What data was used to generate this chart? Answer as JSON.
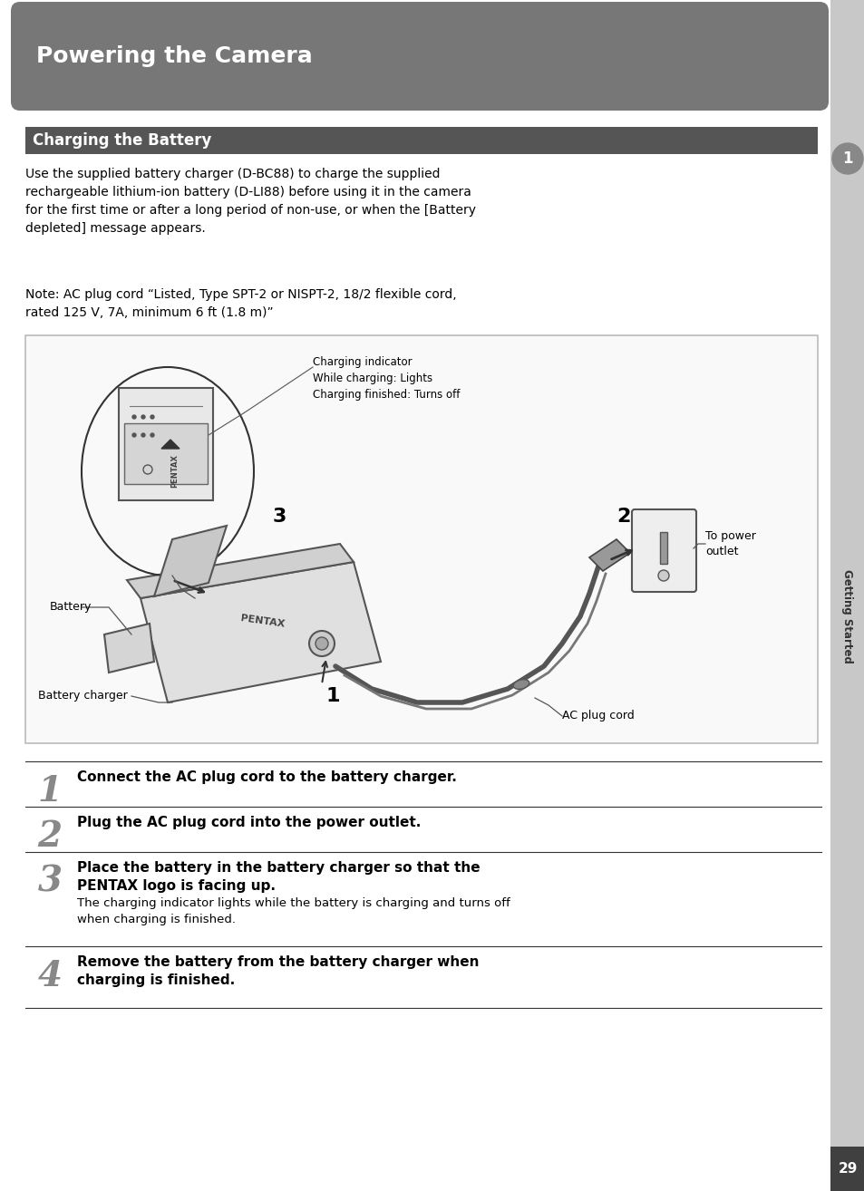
{
  "page_bg": "#ffffff",
  "sidebar_bg": "#c8c8c8",
  "sidebar_dark": "#404040",
  "header_bg": "#777777",
  "header_text": "Powering the Camera",
  "header_text_color": "#ffffff",
  "section_bg": "#555555",
  "section_text": "Charging the Battery",
  "section_text_color": "#ffffff",
  "body_text_1": "Use the supplied battery charger (D-BC88) to charge the supplied\nrechargeable lithium-ion battery (D-LI88) before using it in the camera\nfor the first time or after a long period of non-use, or when the [Battery\ndepleted] message appears.",
  "body_text_2": "Note: AC plug cord “Listed, Type SPT-2 or NISPT-2, 18/2 flexible cord,\nrated 125 V, 7A, minimum 6 ft (1.8 m)”",
  "diagram_border": "#aaaaaa",
  "diagram_bg": "#f8f8f8",
  "steps": [
    {
      "num": "1",
      "bold": "Connect the AC plug cord to the battery charger.",
      "normal": ""
    },
    {
      "num": "2",
      "bold": "Plug the AC plug cord into the power outlet.",
      "normal": ""
    },
    {
      "num": "3",
      "bold": "Place the battery in the battery charger so that the\nPENTAX logo is facing up.",
      "normal": "The charging indicator lights while the battery is charging and turns off\nwhen charging is finished."
    },
    {
      "num": "4",
      "bold": "Remove the battery from the battery charger when\ncharging is finished.",
      "normal": ""
    }
  ],
  "page_number": "29",
  "sidebar_label": "Getting Started",
  "circle_number": "1",
  "diag_charging_indicator": "Charging indicator\nWhile charging: Lights\nCharging finished: Turns off",
  "diag_battery": "Battery",
  "diag_battery_charger": "Battery charger",
  "diag_ac_plug_cord": "AC plug cord",
  "diag_to_power_outlet": "To power\noutlet",
  "diag_num1": "1",
  "diag_num2": "2",
  "diag_num3": "3"
}
